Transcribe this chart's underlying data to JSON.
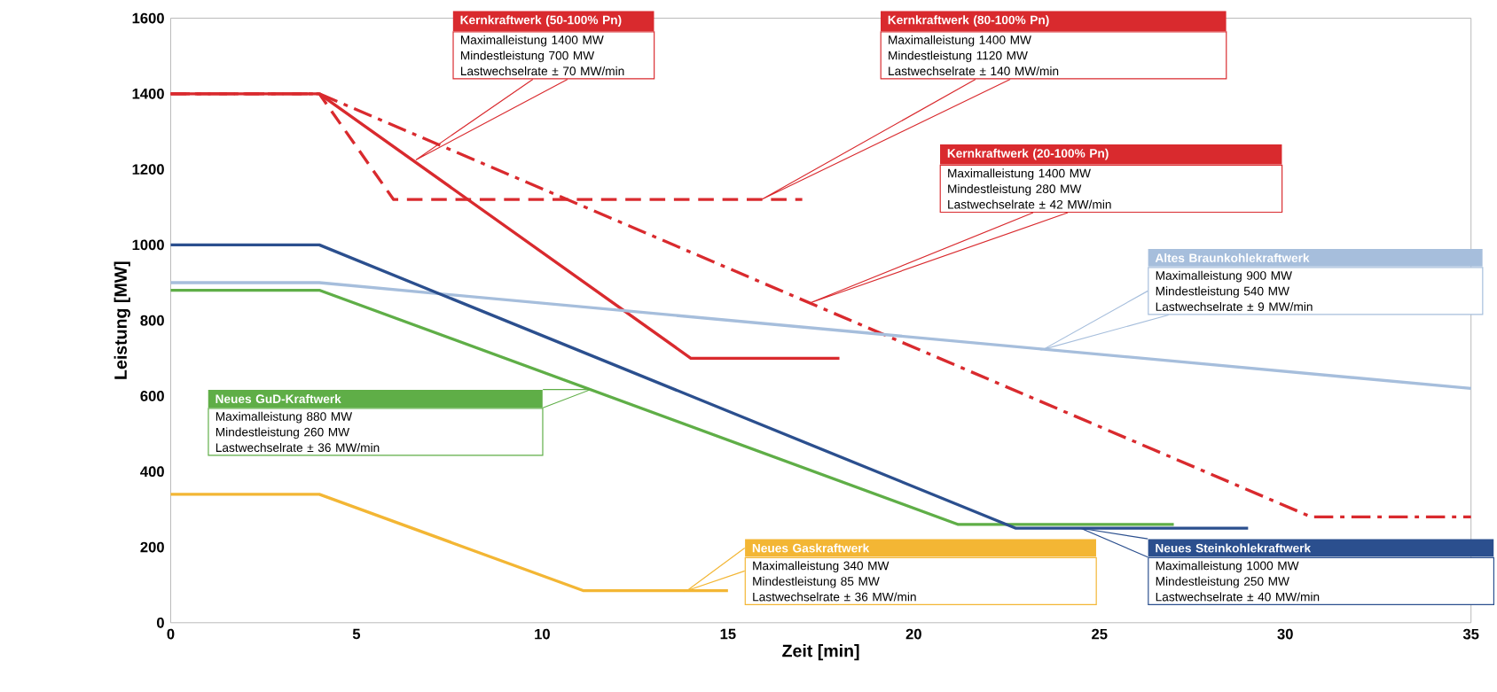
{
  "chart_data": {
    "type": "line",
    "xlabel": "Zeit [min]",
    "ylabel": "Leistung [MW]",
    "xlim": [
      0,
      35
    ],
    "ylim": [
      0,
      1600
    ],
    "xticks": [
      0,
      5,
      10,
      15,
      20,
      25,
      30,
      35
    ],
    "yticks": [
      0,
      200,
      400,
      600,
      800,
      1000,
      1200,
      1400,
      1600
    ],
    "marker": "none",
    "series": [
      {
        "name": "Kernkraftwerk (50-100% Pn)",
        "color": "#d92a2e",
        "line_style": "solid",
        "x": [
          0,
          4,
          14,
          18
        ],
        "values": [
          1400,
          1400,
          700,
          700
        ]
      },
      {
        "name": "Kernkraftwerk (80-100% Pn)",
        "color": "#d92a2e",
        "line_style": "dashed",
        "x": [
          0,
          4,
          6,
          17
        ],
        "values": [
          1400,
          1400,
          1120,
          1120
        ]
      },
      {
        "name": "Kernkraftwerk (20-100% Pn)",
        "color": "#d92a2e",
        "line_style": "dashdot",
        "x": [
          0,
          4,
          30.7,
          35
        ],
        "values": [
          1400,
          1400,
          280,
          280
        ]
      },
      {
        "name": "Altes Braunkohlekraftwerk",
        "color": "#a6bedc",
        "line_style": "solid",
        "x": [
          0,
          4,
          35
        ],
        "values": [
          900,
          900,
          620
        ]
      },
      {
        "name": "Neues GuD-Kraftwerk",
        "color": "#5fae47",
        "line_style": "solid",
        "x": [
          0,
          4,
          21.2,
          27
        ],
        "values": [
          880,
          880,
          260,
          260
        ]
      },
      {
        "name": "Neues Gaskraftwerk",
        "color": "#f3b634",
        "line_style": "solid",
        "x": [
          0,
          4,
          11.1,
          15
        ],
        "values": [
          340,
          340,
          85,
          85
        ]
      },
      {
        "name": "Neues Steinkohlekraftwerk",
        "color": "#2b4f8e",
        "line_style": "solid",
        "x": [
          0,
          4,
          22.75,
          29
        ],
        "values": [
          1000,
          1000,
          250,
          250
        ]
      }
    ],
    "annotations": [
      "Maximalleistung 1400 MW",
      "Mindestleistung 700 MW",
      "Lastwechselrate ± 70 MW/min",
      "Maximalleistung 1400 MW",
      "Mindestleistung 1120 MW",
      "Lastwechselrate ± 140 MW/min",
      "Maximalleistung 1400 MW",
      "Mindestleistung 280 MW",
      "Lastwechselrate ± 42 MW/min",
      "Maximalleistung 900 MW",
      "Mindestleistung 540 MW",
      "Lastwechselrate ± 9 MW/min",
      "Maximalleistung 880 MW",
      "Mindestleistung 260 MW",
      "Lastwechselrate ± 36 MW/min",
      "Maximalleistung 340 MW",
      "Mindestleistung 85 MW",
      "Lastwechselrate ± 36 MW/min",
      "Maximalleistung 1000 MW",
      "Mindestleistung 250 MW",
      "Lastwechselrate ± 40 MW/min"
    ]
  }
}
